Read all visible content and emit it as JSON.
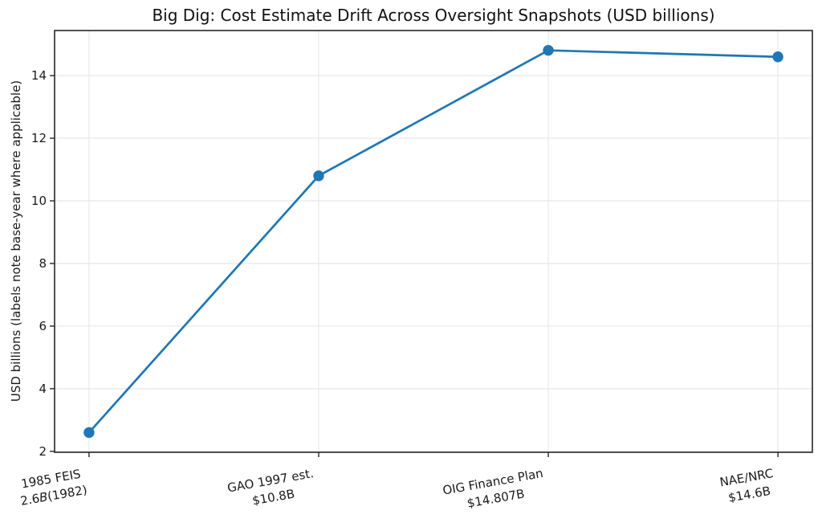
{
  "figure": {
    "background": "#ffffff"
  },
  "chart_data": {
    "type": "line",
    "title": "Big Dig: Cost Estimate Drift Across Oversight Snapshots (USD billions)",
    "ylabel": "USD billions (labels note base-year where applicable)",
    "xlabel": "",
    "categories": [
      {
        "lines": [
          [
            {
              "t": "1985 FEIS"
            }
          ],
          [
            {
              "t": "2.6"
            },
            {
              "t": "B",
              "italic": true
            },
            {
              "t": "(1982)"
            }
          ]
        ]
      },
      {
        "lines": [
          [
            {
              "t": "GAO 1997 est."
            }
          ],
          [
            {
              "t": "$10.8B"
            }
          ]
        ]
      },
      {
        "lines": [
          [
            {
              "t": "OIG Finance Plan"
            }
          ],
          [
            {
              "t": "$14.807B"
            }
          ]
        ]
      },
      {
        "lines": [
          [
            {
              "t": "NAE/NRC"
            }
          ],
          [
            {
              "t": "$14.6B"
            }
          ]
        ]
      }
    ],
    "values": [
      2.6,
      10.8,
      14.807,
      14.6
    ],
    "yticks": [
      2,
      4,
      6,
      8,
      10,
      12,
      14
    ],
    "ylim": [
      1.97,
      15.44
    ],
    "grid": true,
    "legend": "none",
    "x_tick_rotation_deg": 10,
    "line_color": "#1f77b4",
    "marker": "circle",
    "grid_color": "#e7e7e7",
    "axis_color": "#262626",
    "text_color": "#1a1a1a"
  }
}
